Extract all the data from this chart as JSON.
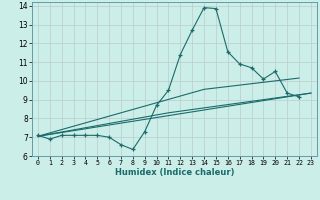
{
  "xlabel": "Humidex (Indice chaleur)",
  "bg_color": "#cceee8",
  "grid_color": "#bbcccc",
  "line_color": "#1a6b6b",
  "xlim": [
    -0.5,
    23.5
  ],
  "ylim": [
    6,
    14.2
  ],
  "xticks": [
    0,
    1,
    2,
    3,
    4,
    5,
    6,
    7,
    8,
    9,
    10,
    11,
    12,
    13,
    14,
    15,
    16,
    17,
    18,
    19,
    20,
    21,
    22,
    23
  ],
  "yticks": [
    6,
    7,
    8,
    9,
    10,
    11,
    12,
    13,
    14
  ],
  "line1_x": [
    0,
    1,
    2,
    3,
    4,
    5,
    6,
    7,
    8,
    9,
    10,
    11,
    12,
    13,
    14,
    15,
    16,
    17,
    18,
    19,
    20,
    21,
    22
  ],
  "line1_y": [
    7.1,
    6.9,
    7.1,
    7.1,
    7.1,
    7.1,
    7.0,
    6.6,
    6.35,
    7.3,
    8.7,
    9.5,
    11.4,
    12.7,
    13.9,
    13.85,
    11.55,
    10.9,
    10.7,
    10.1,
    10.5,
    9.35,
    9.15
  ],
  "line2_x": [
    0,
    23
  ],
  "line2_y": [
    7.05,
    9.35
  ],
  "line3_x": [
    0,
    11,
    23
  ],
  "line3_y": [
    7.05,
    8.3,
    9.35
  ],
  "line4_x": [
    0,
    14,
    22
  ],
  "line4_y": [
    7.05,
    9.55,
    10.15
  ]
}
